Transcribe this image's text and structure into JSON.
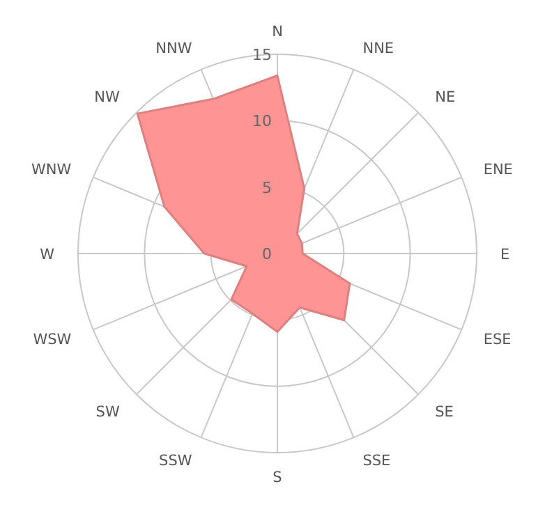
{
  "chart_data": {
    "type": "radar",
    "categories": [
      "N",
      "NNE",
      "NE",
      "ENE",
      "E",
      "ESE",
      "SE",
      "SSE",
      "S",
      "SSW",
      "SW",
      "WSW",
      "W",
      "WNW",
      "NW",
      "NNW"
    ],
    "series": [
      {
        "color": "#ff9494",
        "values": [
          13.4,
          5.3,
          2.1,
          2,
          1.9,
          5.9,
          7.1,
          4.4,
          5.9,
          4.9,
          4.9,
          2.5,
          5.5,
          9.2,
          14.9,
          12.6
        ]
      }
    ],
    "ylim": [
      0,
      15
    ],
    "yticks": [
      0,
      5,
      10,
      15
    ],
    "grid": true,
    "marker": "none"
  }
}
